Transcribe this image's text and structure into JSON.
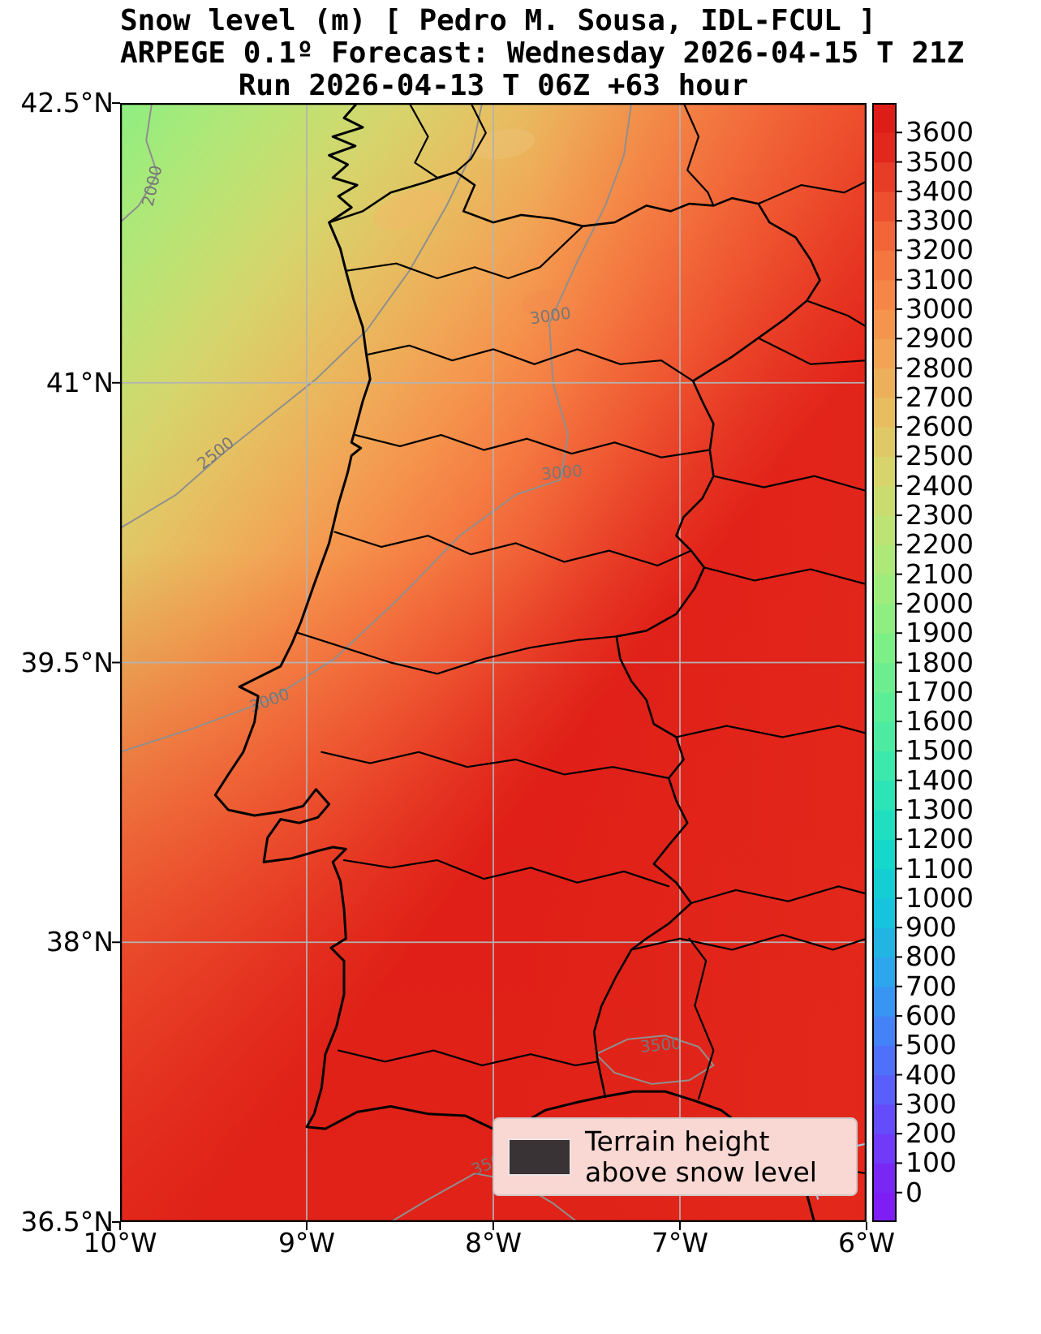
{
  "title": {
    "line1": "Snow level (m) [ Pedro M. Sousa, IDL-FCUL ]",
    "line2": "ARPEGE 0.1º Forecast: Wednesday 2026-04-15 T 21Z",
    "line3": "Run 2026-04-13 T 06Z +63 hour"
  },
  "axes": {
    "x_tick_labels": [
      "10°W",
      "9°W",
      "8°W",
      "7°W",
      "6°W"
    ],
    "x_tick_lons": [
      -10,
      -9,
      -8,
      -7,
      -6
    ],
    "y_tick_labels": [
      "42.5°N",
      "41°N",
      "39.5°N",
      "38°N",
      "36.5°N"
    ],
    "y_tick_lats": [
      42.5,
      41,
      39.5,
      38,
      36.5
    ],
    "grid_lons": [
      -9,
      -8,
      -7
    ],
    "grid_lats": [
      41,
      39.5,
      38
    ],
    "grid_color": "#b3b3b3"
  },
  "colorbar": {
    "tick_labels": [
      "3600",
      "3500",
      "3400",
      "3300",
      "3200",
      "3100",
      "3000",
      "2900",
      "2800",
      "2700",
      "2600",
      "2500",
      "2400",
      "2300",
      "2200",
      "2100",
      "2000",
      "1900",
      "1800",
      "1700",
      "1600",
      "1500",
      "1400",
      "1300",
      "1200",
      "1100",
      "1000",
      "900",
      "800",
      "700",
      "600",
      "500",
      "400",
      "300",
      "200",
      "100",
      "0"
    ]
  },
  "legend": {
    "line1": "Terrain height",
    "line2": "above snow level",
    "patch_color": "#3a3335"
  },
  "chart_data": {
    "type": "heatmap",
    "subtype": "filled-contour-map",
    "variable": "Snow level (m)",
    "model": "ARPEGE 0.1º",
    "forecast_valid": "Wednesday 2026-04-15 T 21Z",
    "run": "2026-04-13 T 06Z",
    "lead_time_hours": 63,
    "credit": "Pedro M. Sousa, IDL-FCUL",
    "lon_range": [
      -10,
      -6
    ],
    "lat_range": [
      36.5,
      42.5
    ],
    "value_range": [
      0,
      3600
    ],
    "band_interval": 100,
    "grid": true,
    "legend_position": "lower right",
    "colorbar_position": "right",
    "contour_line_levels": [
      2000,
      2500,
      3000,
      3500
    ],
    "contour_labels": [
      {
        "text": "2000",
        "lon": -9.8,
        "lat": 42.05,
        "rot": -77
      },
      {
        "text": "2500",
        "lon": -9.47,
        "lat": 40.6,
        "rot": -38
      },
      {
        "text": "3000",
        "lon": -7.69,
        "lat": 41.33,
        "rot": -8
      },
      {
        "text": "3000",
        "lon": -7.63,
        "lat": 40.49,
        "rot": -5
      },
      {
        "text": "3000",
        "lon": -9.19,
        "lat": 39.27,
        "rot": -20
      },
      {
        "text": "3500",
        "lon": -7.1,
        "lat": 37.42,
        "rot": -5
      },
      {
        "text": "3500",
        "lon": -8.0,
        "lat": 36.79,
        "rot": -22
      }
    ],
    "colormap_stops": [
      {
        "value": 0,
        "color": "#7e1ef4"
      },
      {
        "value": 200,
        "color": "#6b43f9"
      },
      {
        "value": 400,
        "color": "#5467fb"
      },
      {
        "value": 600,
        "color": "#3e8cf5"
      },
      {
        "value": 800,
        "color": "#27aee8"
      },
      {
        "value": 1000,
        "color": "#11cbd9"
      },
      {
        "value": 1200,
        "color": "#18dcc5"
      },
      {
        "value": 1400,
        "color": "#34e6b1"
      },
      {
        "value": 1600,
        "color": "#54ec9b"
      },
      {
        "value": 1800,
        "color": "#75ef8a"
      },
      {
        "value": 2000,
        "color": "#96ee7e"
      },
      {
        "value": 2200,
        "color": "#b6e676"
      },
      {
        "value": 2400,
        "color": "#d1d96d"
      },
      {
        "value": 2600,
        "color": "#e4c363"
      },
      {
        "value": 2800,
        "color": "#f0aa57"
      },
      {
        "value": 3000,
        "color": "#f68d4a"
      },
      {
        "value": 3200,
        "color": "#f46f3d"
      },
      {
        "value": 3400,
        "color": "#ea462a"
      },
      {
        "value": 3600,
        "color": "#df1d18"
      }
    ],
    "field_estimate": {
      "nw_corner": 1900,
      "ne_corner": 3200,
      "sw_corner": 3450,
      "se_corner": 3600,
      "center": 3100,
      "description": "Snow level rises from about 1900 m in the NW Atlantic corner to 3500 m and above over southern and eastern Iberia; no terrain exceeds the snow level."
    }
  }
}
